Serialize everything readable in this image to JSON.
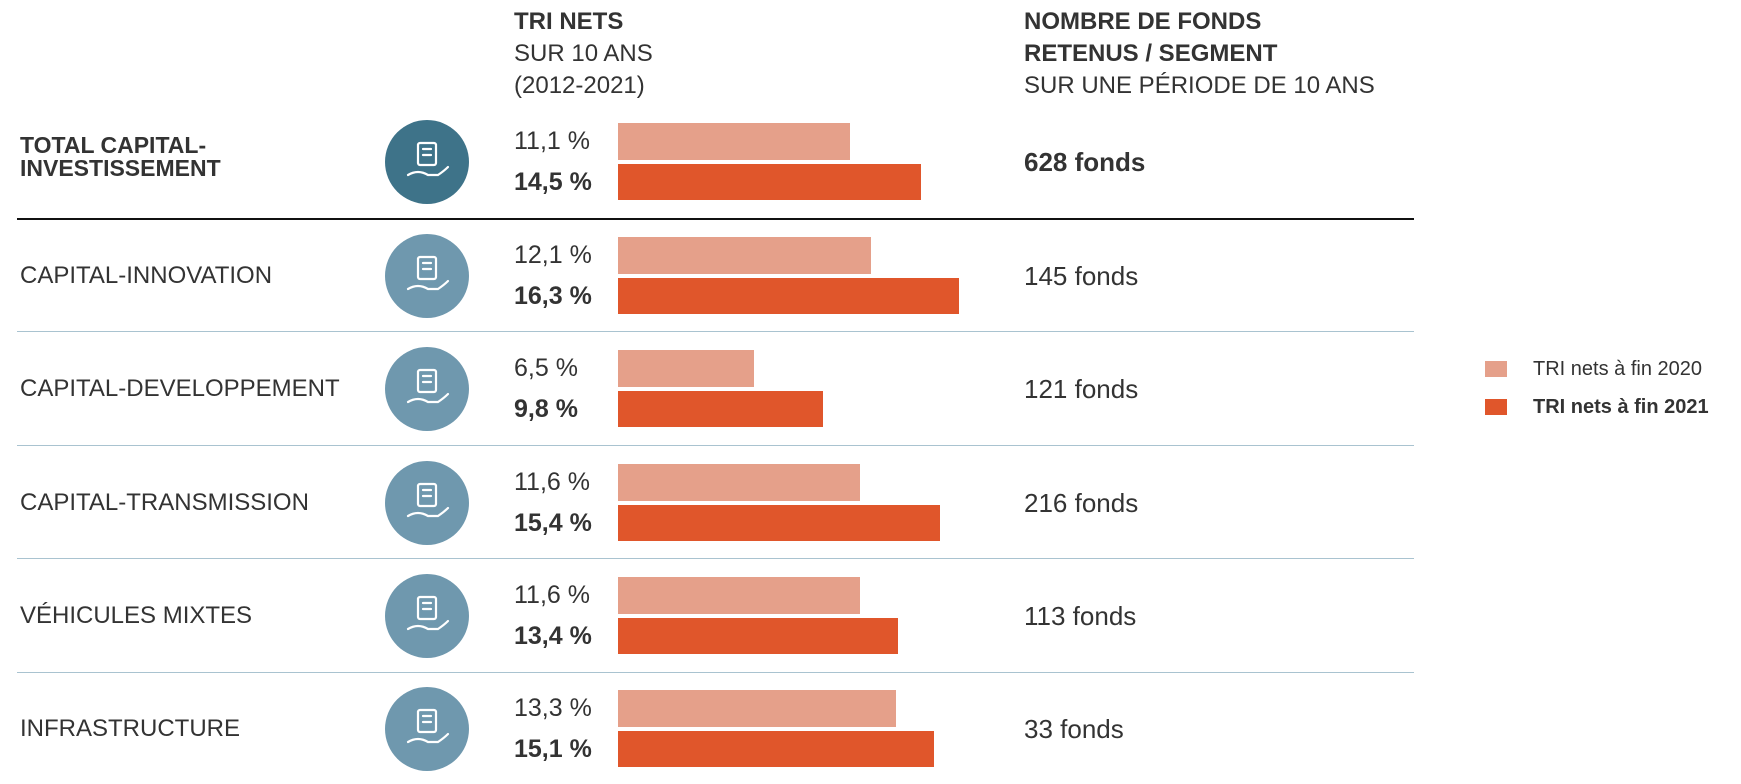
{
  "chart_data": {
    "type": "hbar",
    "headers": {
      "tri": [
        "TRI NETS",
        "SUR 10 ANS",
        "(2012-2021)"
      ],
      "funds": [
        "NOMBRE DE FONDS",
        "RETENUS / SEGMENT",
        "SUR UNE PÉRIODE DE 10 ANS"
      ]
    },
    "categories": [
      "TOTAL CAPITAL-INVESTISSEMENT",
      "CAPITAL-INNOVATION",
      "CAPITAL-DEVELOPPEMENT",
      "CAPITAL-TRANSMISSION",
      "VÉHICULES MIXTES",
      "INFRASTRUCTURE"
    ],
    "series": [
      {
        "name": "TRI nets à fin 2020",
        "color": "#e5a08a",
        "values": [
          11.1,
          12.1,
          6.5,
          11.6,
          11.6,
          13.3
        ],
        "value_labels": [
          "11,1 %",
          "12,1 %",
          "6,5 %",
          "11,6 %",
          "11,6 %",
          "13,3 %"
        ]
      },
      {
        "name": "TRI nets à fin 2021",
        "color": "#e0562b",
        "values": [
          14.5,
          16.3,
          9.8,
          15.4,
          13.4,
          15.1
        ],
        "value_labels": [
          "14,5 %",
          "16,3 %",
          "9,8 %",
          "15,4 %",
          "13,4 %",
          "15,1 %"
        ]
      }
    ],
    "funds": [
      "628 fonds",
      "145 fonds",
      "121 fonds",
      "216 fonds",
      "113 fonds",
      "33 fonds"
    ]
  }
}
